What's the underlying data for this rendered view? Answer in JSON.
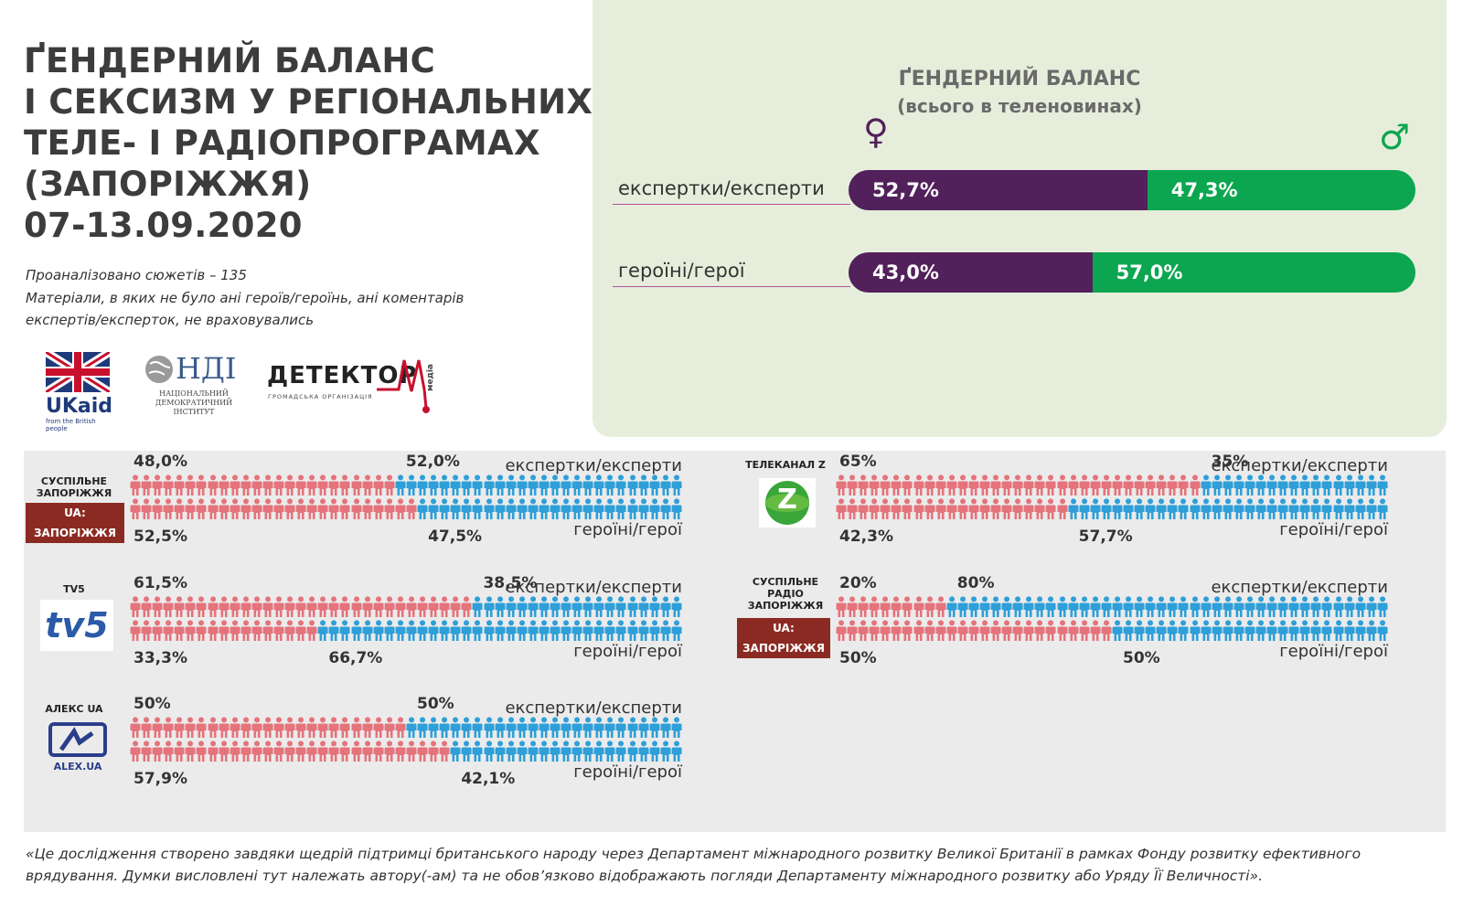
{
  "title": {
    "lines": [
      "ҐЕНДЕРНИЙ БАЛАНС",
      "І СЕКСИЗМ У РЕГІОНАЛЬНИХ",
      "ТЕЛЕ- І РАДІОПРОГРАМАХ",
      "(ЗАПОРІЖЖЯ)",
      "07-13.09.2020"
    ]
  },
  "meta": {
    "line1": "Проаналізовано сюжетів – 135",
    "line2": "Матеріали, в яких не було ані героїв/героїнь, ані коментарів",
    "line3": "експертів/експерток, не враховувались"
  },
  "logos": {
    "ukaid": {
      "text": "UKaid",
      "sub": "from the British people"
    },
    "ndi": {
      "text": "НДІ",
      "sub1": "НАЦІОНАЛЬНИЙ",
      "sub2": "ДЕМОКРАТИЧНИЙ",
      "sub3": "ІНСТИТУТ"
    },
    "detector": {
      "text": "ДЕТЕКТОР",
      "sub": "ГРОМАДСЬКА ОРГАНІЗАЦІЯ",
      "m": "M",
      "media": "медіа"
    }
  },
  "summary": {
    "title": "ҐЕНДЕРНИЙ БАЛАНС",
    "subtitle": "(всього в теленовинах)",
    "female_symbol": "♀",
    "male_symbol": "♂",
    "rows": [
      {
        "label": "експертки/експерти",
        "female": "52,7%",
        "male": "47,3%"
      },
      {
        "label": "героїні/герої",
        "female": "43,0%",
        "male": "57,0%"
      }
    ]
  },
  "chart_data": {
    "type": "bar",
    "title": "ҐЕНДЕРНИЙ БАЛАНС",
    "subtitle": "(всього в теленовинах)",
    "categories": [
      "експертки/експерти",
      "героїні/герої"
    ],
    "series": [
      {
        "name": "♀",
        "values": [
          52.7,
          43.0
        ],
        "color": "#52205a"
      },
      {
        "name": "♂",
        "values": [
          47.3,
          57.0
        ],
        "color": "#0ca650"
      }
    ],
    "stacked": true,
    "orientation": "horizontal",
    "xlim": [
      0,
      100
    ]
  },
  "channels": [
    {
      "name": "СУСПІЛЬНЕ ЗАПОРІЖЖЯ",
      "name_lines": [
        "СУСПІЛЬНЕ",
        "ЗАПОРІЖЖЯ"
      ],
      "badge": "UA: ЗАПОРІЖЖЯ",
      "experts": {
        "female": "48,0%",
        "male": "52,0%",
        "female_value": 48.0
      },
      "heroes": {
        "female": "52,5%",
        "male": "47,5%",
        "female_value": 52.5
      },
      "expert_label": "експертки/експерти",
      "hero_label": "героїні/герої"
    },
    {
      "name": "TV5",
      "name_lines": [
        "TV5"
      ],
      "badge": "tv5",
      "experts": {
        "female": "61,5%",
        "male": "38,5%",
        "female_value": 61.5
      },
      "heroes": {
        "female": "33,3%",
        "male": "66,7%",
        "female_value": 33.3
      },
      "expert_label": "експертки/експерти",
      "hero_label": "героїні/герої"
    },
    {
      "name": "АЛЕКС UA",
      "name_lines": [
        "АЛЕКС UA"
      ],
      "badge": "ALEX.UA",
      "experts": {
        "female": "50%",
        "male": "50%",
        "female_value": 50
      },
      "heroes": {
        "female": "57,9%",
        "male": "42,1%",
        "female_value": 57.9
      },
      "expert_label": "експертки/експерти",
      "hero_label": "героїні/герої"
    },
    {
      "name": "ТЕЛЕКАНАЛ Z",
      "name_lines": [
        "ТЕЛЕКАНАЛ Z"
      ],
      "badge": "Z",
      "experts": {
        "female": "65%",
        "male": "35%",
        "female_value": 65
      },
      "heroes": {
        "female": "42,3%",
        "male": "57,7%",
        "female_value": 42.3
      },
      "expert_label": "експертки/експерти",
      "hero_label": "героїні/герої"
    },
    {
      "name": "СУСПІЛЬНЕ РАДІО ЗАПОРІЖЖЯ",
      "name_lines": [
        "СУСПІЛЬНЕ",
        "РАДІО",
        "ЗАПОРІЖЖЯ"
      ],
      "badge": "UA: ЗАПОРІЖЖЯ",
      "experts": {
        "female": "20%",
        "male": "80%",
        "female_value": 20
      },
      "heroes": {
        "female": "50%",
        "male": "50%",
        "female_value": 50
      },
      "expert_label": "експертки/експерти",
      "hero_label": "героїні/герої"
    }
  ],
  "colors": {
    "female_person": "#e5737b",
    "male_person": "#2e9fd8",
    "female_bar": "#52205a",
    "male_bar": "#0ca650",
    "panel_green": "#e6eedb",
    "panel_grey": "#ebebeb",
    "badge_red": "#8b2a22"
  },
  "footer": "«Це дослідження створено завдяки щедрій підтримці британського народу через Департамент міжнародного розвитку Великої Британії в рамках Фонду розвитку ефективного врядування. Думки висловлені тут належать автору(-ам) та не обов’язково відображають погляди Департаменту міжнародного розвитку або Уряду Її Величності»."
}
